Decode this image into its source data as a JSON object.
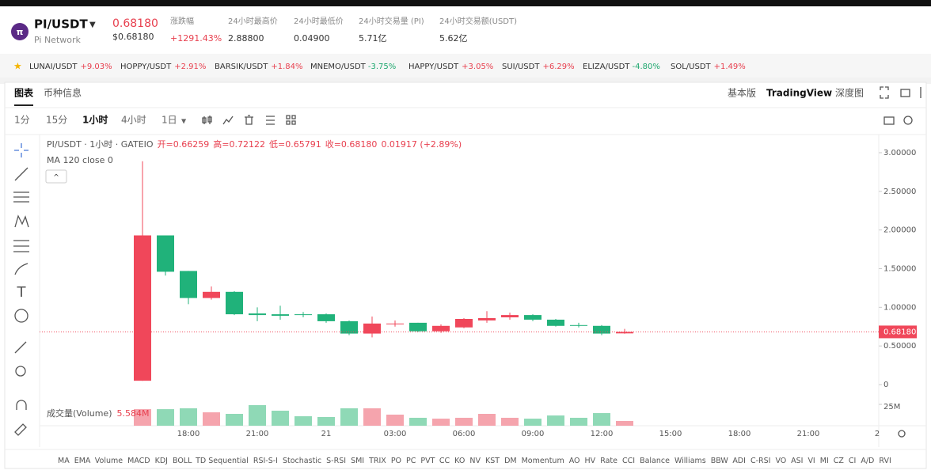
{
  "header": {
    "symbol": "PI/USDT",
    "name": "Pi Network",
    "price": "0.68180",
    "price_usd": "$0.68180",
    "stats": [
      {
        "label": "涨跌幅",
        "value": "+1291.43%"
      },
      {
        "label": "24小时最高价",
        "value": "2.88800"
      },
      {
        "label": "24小时最低价",
        "value": "0.04900"
      },
      {
        "label": "24小时交易量 (PI)",
        "value": "5.71亿"
      },
      {
        "label": "24小时交易额(USDT)",
        "value": "5.62亿"
      }
    ]
  },
  "ticker": [
    {
      "pair": "LUNAI/USDT",
      "change": "+9.03%"
    },
    {
      "pair": "HOPPY/USDT",
      "change": "+2.91%"
    },
    {
      "pair": "BARSIK/USDT",
      "change": "+1.84%"
    },
    {
      "pair": "MNEMO/USDT",
      "change": "-3.75%"
    },
    {
      "pair": "HAPPY/USDT",
      "change": "+3.05%"
    },
    {
      "pair": "SUI/USDT",
      "change": "+6.29%"
    },
    {
      "pair": "ELIZA/USDT",
      "change": "-4.80%"
    },
    {
      "pair": "SOL/USDT",
      "change": "+1.49%"
    }
  ],
  "tabs": [
    "图表",
    "币种信息"
  ],
  "views": [
    "基本版",
    "TradingView",
    "深度图"
  ],
  "intervals": [
    "1分",
    "15分",
    "1小时",
    "4小时",
    "1日"
  ],
  "indicators": [
    "MA",
    "EMA",
    "Volume",
    "MACD",
    "KDJ",
    "BOLL",
    "TD Sequential",
    "RSI-S-I",
    "Stochastic",
    "S-RSI",
    "SMI",
    "TRIX",
    "PO",
    "PC",
    "PVT",
    "CC",
    "KO",
    "NV",
    "KST",
    "DM",
    "Momentum",
    "AO",
    "HV",
    "Rate",
    "CCI",
    "Balance",
    "Williams",
    "BBW",
    "ADI",
    "C-RSI",
    "VO",
    "ASI",
    "VI",
    "MI",
    "CZ",
    "CI",
    "A/D",
    "RVI"
  ],
  "chart_data": {
    "type": "candlestick",
    "title": "PI/USDT · 1小时 · GATEIO",
    "legend_text": [
      "开=0.66259",
      "高=0.72122",
      "低=0.65791",
      "收=0.68180",
      "0.01917 (+2.89%)"
    ],
    "indicator": "MA 120 close 0",
    "categories": [
      null,
      null,
      "18:00",
      null,
      null,
      "21:00",
      null,
      null,
      "21",
      null,
      null,
      "03:00",
      null,
      null,
      "06:00",
      null,
      null,
      "09:00",
      null,
      null,
      "12:00",
      null
    ],
    "future_ticks": [
      "15:00",
      "18:00",
      "21:00",
      "2"
    ],
    "open": [
      0.05,
      1.93,
      1.47,
      1.12,
      1.2,
      0.92,
      0.91,
      0.91,
      0.91,
      0.82,
      0.66,
      0.78,
      0.8,
      0.69,
      0.74,
      0.83,
      0.87,
      0.9,
      0.84,
      0.77,
      0.76,
      0.66259
    ],
    "high": [
      2.89,
      1.93,
      1.47,
      1.27,
      1.21,
      1.0,
      1.02,
      0.94,
      0.92,
      0.83,
      0.88,
      0.83,
      0.8,
      0.78,
      0.86,
      0.95,
      0.93,
      0.91,
      0.85,
      0.8,
      0.77,
      0.72122
    ],
    "low": [
      0.049,
      1.41,
      1.04,
      1.1,
      0.9,
      0.82,
      0.84,
      0.87,
      0.8,
      0.64,
      0.61,
      0.75,
      0.68,
      0.67,
      0.73,
      0.8,
      0.84,
      0.82,
      0.75,
      0.74,
      0.64,
      0.65791
    ],
    "close": [
      1.93,
      1.46,
      1.12,
      1.2,
      0.91,
      0.9,
      0.89,
      0.9,
      0.82,
      0.66,
      0.79,
      0.79,
      0.69,
      0.76,
      0.85,
      0.86,
      0.9,
      0.84,
      0.76,
      0.76,
      0.66,
      0.6818
    ],
    "up_color": "#f0475a",
    "down_color": "#20b27a",
    "ylim": [
      -0.532,
      3.235
    ],
    "yticks": [
      0,
      {
        "value": 0.5,
        "label": "0.50000"
      },
      {
        "value": 1,
        "label": "1.00000"
      },
      {
        "value": 1.5,
        "label": "1.50000"
      },
      {
        "value": 2,
        "label": "2.00000"
      },
      {
        "value": 2.5,
        "label": "2.50000"
      },
      {
        "value": 3,
        "label": "3.00000"
      }
    ],
    "last_price": {
      "value": 0.6818,
      "label": "0.68180"
    },
    "volume": {
      "name": "成交量(Volume)",
      "values": [
        19400000,
        19400000,
        20400000,
        15700000,
        13900000,
        24100000,
        17600000,
        11100000,
        10200000,
        20400000,
        20400000,
        13000000,
        9300000,
        8300000,
        9300000,
        13900000,
        9300000,
        8300000,
        12000000,
        9300000,
        14800000,
        5584000
      ],
      "value_labels": [
        null,
        null,
        null,
        null,
        null,
        null,
        null,
        null,
        null,
        null,
        null,
        null,
        null,
        null,
        null,
        null,
        null,
        null,
        null,
        null,
        null,
        "5.584M"
      ],
      "up_color": "#f5a4ad",
      "down_color": "#8fd9b6",
      "ylim": [
        0,
        27800000
      ],
      "yticks": [
        {
          "value": 25000000,
          "label": "25M"
        }
      ]
    }
  }
}
